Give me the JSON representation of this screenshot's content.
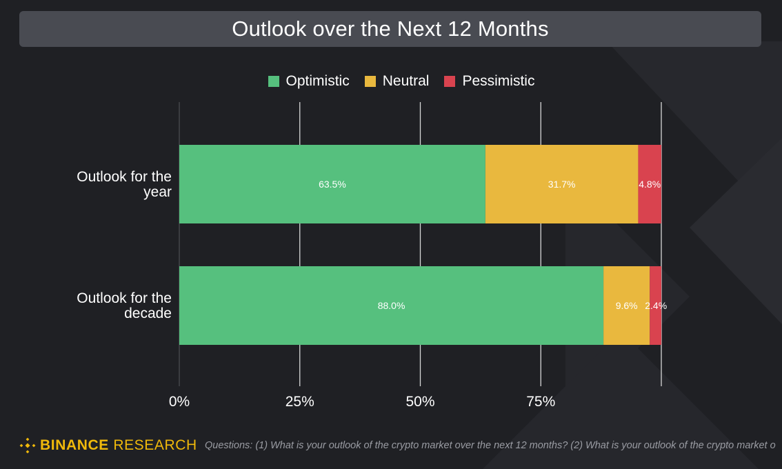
{
  "colors": {
    "optimistic": "#56c07e",
    "neutral": "#e9b83e",
    "pessimistic": "#d9434f",
    "brand": "#f0b90b"
  },
  "chart_data": {
    "type": "bar",
    "orientation": "horizontal",
    "stacked": true,
    "title": "Outlook over the Next 12 Months",
    "categories": [
      "Outlook for the year",
      "Outlook for the decade"
    ],
    "category_lines": [
      [
        "Outlook for the",
        "year"
      ],
      [
        "Outlook for the",
        "decade"
      ]
    ],
    "series": [
      {
        "name": "Optimistic",
        "color_key": "optimistic",
        "values": [
          63.5,
          88.0
        ],
        "labels": [
          "63.5%",
          "88.0%"
        ]
      },
      {
        "name": "Neutral",
        "color_key": "neutral",
        "values": [
          31.7,
          9.6
        ],
        "labels": [
          "31.7%",
          "9.6%"
        ]
      },
      {
        "name": "Pessimistic",
        "color_key": "pessimistic",
        "values": [
          4.8,
          2.4
        ],
        "labels": [
          "4.8%",
          "2.4%"
        ]
      }
    ],
    "xlim": [
      0,
      100
    ],
    "xticks": [
      0,
      25,
      50,
      75
    ],
    "xtick_labels": [
      "0%",
      "25%",
      "50%",
      "75%"
    ],
    "grid": true,
    "legend_position": "top-center"
  },
  "footer": {
    "brand_name": "BINANCE",
    "brand_suffix": "RESEARCH",
    "note": "Questions: (1) What is your outlook of the crypto market over the next 12 months? (2) What is your outlook of the crypto market o"
  }
}
